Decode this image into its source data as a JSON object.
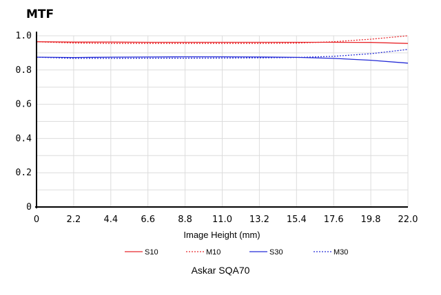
{
  "chart_data": {
    "type": "line",
    "title": "MTF",
    "xlabel": "Image Height (mm)",
    "ylabel": "",
    "caption": "Askar SQA70",
    "xlim": [
      0,
      22.0
    ],
    "ylim": [
      0,
      1.0
    ],
    "x_ticks": [
      "0",
      "2.2",
      "4.4",
      "6.6",
      "8.8",
      "11.0",
      "13.2",
      "15.4",
      "17.6",
      "19.8",
      "22.0"
    ],
    "y_ticks": [
      "0",
      "0.2",
      "0.4",
      "0.6",
      "0.8",
      "1.0"
    ],
    "grid": true,
    "legend_position": "bottom",
    "x": [
      0,
      2.2,
      4.4,
      6.6,
      8.8,
      11.0,
      13.2,
      15.4,
      17.6,
      19.8,
      22.0
    ],
    "series": [
      {
        "name": "S10",
        "color": "#e8262a",
        "dash": false,
        "values": [
          0.965,
          0.963,
          0.963,
          0.962,
          0.962,
          0.962,
          0.962,
          0.962,
          0.962,
          0.961,
          0.955
        ]
      },
      {
        "name": "M10",
        "color": "#e8262a",
        "dash": true,
        "values": [
          0.965,
          0.958,
          0.955,
          0.955,
          0.955,
          0.955,
          0.955,
          0.957,
          0.965,
          0.98,
          1.0
        ]
      },
      {
        "name": "S30",
        "color": "#2229d6",
        "dash": false,
        "values": [
          0.875,
          0.873,
          0.875,
          0.876,
          0.877,
          0.877,
          0.876,
          0.874,
          0.868,
          0.857,
          0.84
        ]
      },
      {
        "name": "M30",
        "color": "#2229d6",
        "dash": true,
        "values": [
          0.875,
          0.868,
          0.868,
          0.869,
          0.869,
          0.87,
          0.871,
          0.873,
          0.88,
          0.895,
          0.92
        ]
      }
    ]
  }
}
